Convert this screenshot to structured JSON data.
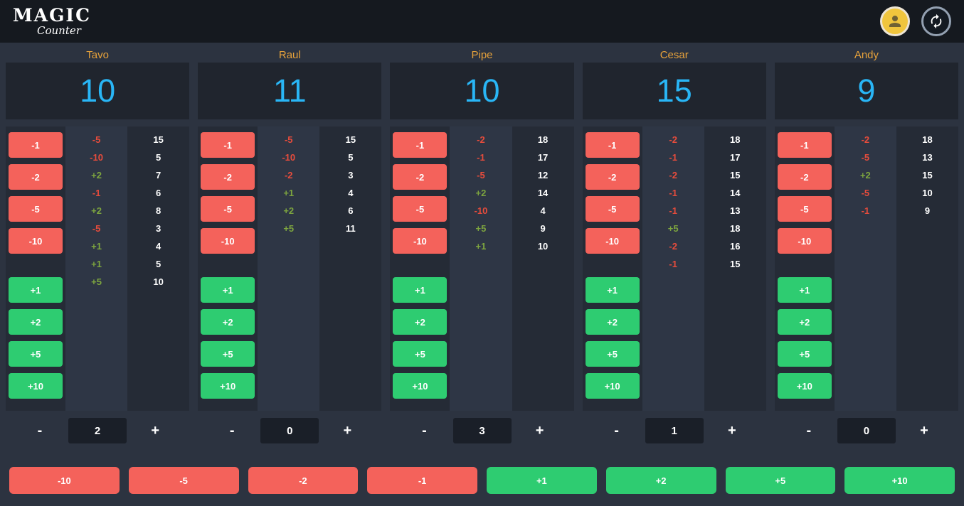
{
  "app": {
    "logo_title": "Magic",
    "logo_subtitle": "Counter"
  },
  "colors": {
    "accent_blue": "#29b6f6",
    "accent_orange": "#e7a23b",
    "button_red": "#f4625b",
    "button_green": "#2ecc71",
    "history_negative": "#e74c3c",
    "history_positive": "#7da53f"
  },
  "decrement_buttons": [
    "-1",
    "-2",
    "-5",
    "-10"
  ],
  "increment_buttons": [
    "+1",
    "+2",
    "+5",
    "+10"
  ],
  "stepper": {
    "minus": "-",
    "plus": "+"
  },
  "players": [
    {
      "name": "Tavo",
      "life": "10",
      "counter": "2",
      "history": [
        {
          "delta": "-5",
          "total": "15"
        },
        {
          "delta": "-10",
          "total": "5"
        },
        {
          "delta": "+2",
          "total": "7"
        },
        {
          "delta": "-1",
          "total": "6"
        },
        {
          "delta": "+2",
          "total": "8"
        },
        {
          "delta": "-5",
          "total": "3"
        },
        {
          "delta": "+1",
          "total": "4"
        },
        {
          "delta": "+1",
          "total": "5"
        },
        {
          "delta": "+5",
          "total": "10"
        }
      ]
    },
    {
      "name": "Raul",
      "life": "11",
      "counter": "0",
      "history": [
        {
          "delta": "-5",
          "total": "15"
        },
        {
          "delta": "-10",
          "total": "5"
        },
        {
          "delta": "-2",
          "total": "3"
        },
        {
          "delta": "+1",
          "total": "4"
        },
        {
          "delta": "+2",
          "total": "6"
        },
        {
          "delta": "+5",
          "total": "11"
        }
      ]
    },
    {
      "name": "Pipe",
      "life": "10",
      "counter": "3",
      "history": [
        {
          "delta": "-2",
          "total": "18"
        },
        {
          "delta": "-1",
          "total": "17"
        },
        {
          "delta": "-5",
          "total": "12"
        },
        {
          "delta": "+2",
          "total": "14"
        },
        {
          "delta": "-10",
          "total": "4"
        },
        {
          "delta": "+5",
          "total": "9"
        },
        {
          "delta": "+1",
          "total": "10"
        }
      ]
    },
    {
      "name": "Cesar",
      "life": "15",
      "counter": "1",
      "history": [
        {
          "delta": "-2",
          "total": "18"
        },
        {
          "delta": "-1",
          "total": "17"
        },
        {
          "delta": "-2",
          "total": "15"
        },
        {
          "delta": "-1",
          "total": "14"
        },
        {
          "delta": "-1",
          "total": "13"
        },
        {
          "delta": "+5",
          "total": "18"
        },
        {
          "delta": "-2",
          "total": "16"
        },
        {
          "delta": "-1",
          "total": "15"
        }
      ]
    },
    {
      "name": "Andy",
      "life": "9",
      "counter": "0",
      "history": [
        {
          "delta": "-2",
          "total": "18"
        },
        {
          "delta": "-5",
          "total": "13"
        },
        {
          "delta": "+2",
          "total": "15"
        },
        {
          "delta": "-5",
          "total": "10"
        },
        {
          "delta": "-1",
          "total": "9"
        }
      ]
    }
  ],
  "global_buttons": [
    {
      "label": "-10",
      "kind": "negative"
    },
    {
      "label": "-5",
      "kind": "negative"
    },
    {
      "label": "-2",
      "kind": "negative"
    },
    {
      "label": "-1",
      "kind": "negative"
    },
    {
      "label": "+1",
      "kind": "positive"
    },
    {
      "label": "+2",
      "kind": "positive"
    },
    {
      "label": "+5",
      "kind": "positive"
    },
    {
      "label": "+10",
      "kind": "positive"
    }
  ]
}
